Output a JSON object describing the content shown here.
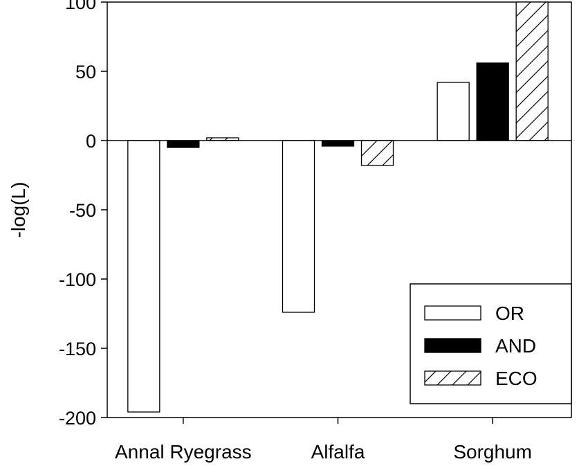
{
  "chart_data": {
    "type": "bar",
    "title": "",
    "xlabel": "",
    "ylabel": "-log(L)",
    "ylim": [
      -200,
      100
    ],
    "yticks": [
      100,
      50,
      0,
      -50,
      -100,
      -150,
      -200
    ],
    "categories": [
      "Annal Ryegrass",
      "Alfalfa",
      "Sorghum"
    ],
    "series": [
      {
        "name": "OR",
        "fill": "white",
        "values": [
          -196,
          -124,
          42
        ]
      },
      {
        "name": "AND",
        "fill": "black",
        "values": [
          -5,
          -4,
          56
        ]
      },
      {
        "name": "ECO",
        "fill": "hatch",
        "values": [
          2,
          -18,
          100
        ]
      }
    ],
    "legend": {
      "placement": "bottom-right"
    },
    "grid": false
  }
}
